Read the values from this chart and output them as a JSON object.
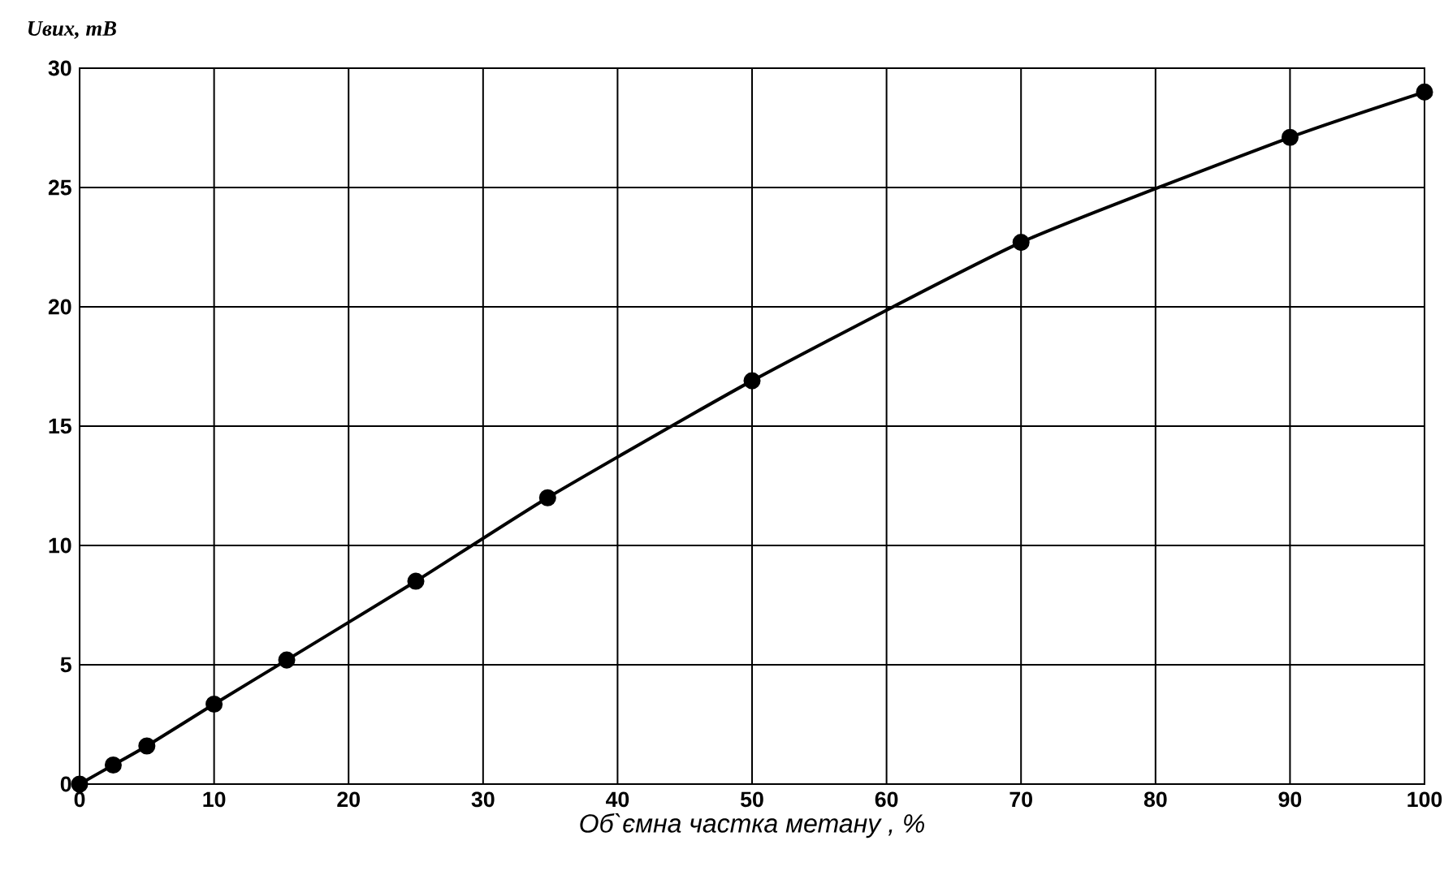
{
  "chart_data": {
    "type": "line",
    "xlabel": "Об`ємна частка метану  , %",
    "ylabel": "Uвих, mВ",
    "x": [
      0,
      2.5,
      5,
      10,
      15.4,
      25,
      34.8,
      50,
      70,
      90,
      100
    ],
    "series": [
      {
        "color": "#000000",
        "values": [
          0,
          0.8,
          1.6,
          3.35,
          5.2,
          8.5,
          12.0,
          16.9,
          22.7,
          27.1,
          29.0
        ]
      }
    ],
    "xlim": [
      0,
      100
    ],
    "ylim": [
      0,
      30
    ],
    "xticks": [
      0,
      10,
      20,
      30,
      40,
      50,
      60,
      70,
      80,
      90,
      100
    ],
    "yticks": [
      0,
      5,
      10,
      15,
      20,
      25,
      30
    ],
    "grid": true,
    "marker": "circle",
    "line_style": "solid"
  }
}
